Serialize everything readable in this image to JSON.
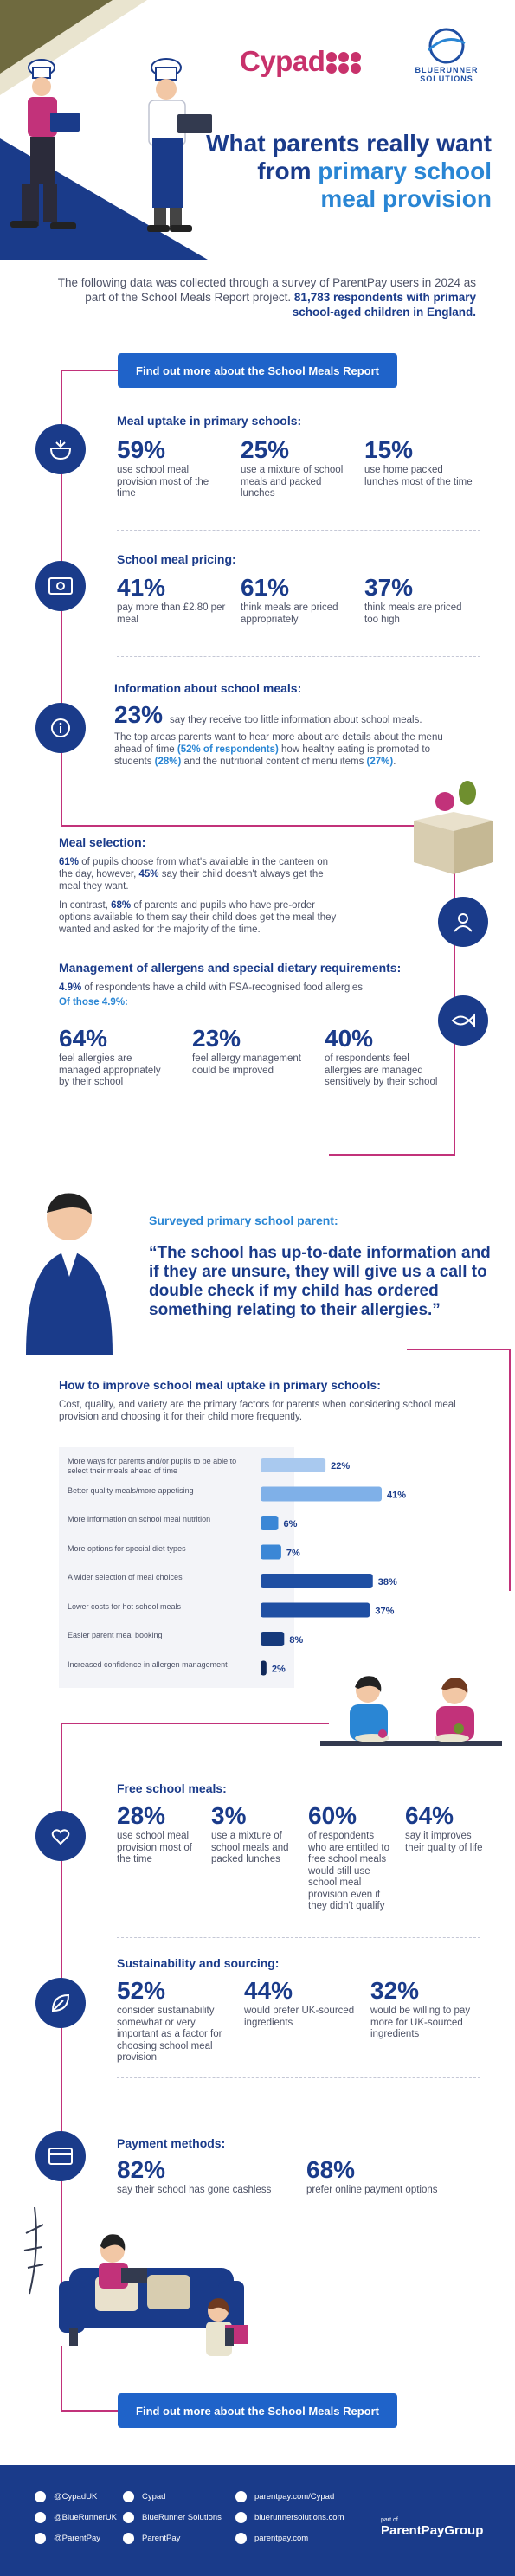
{
  "header": {
    "cypad_logo": "Cypad",
    "bluerunner_logo_line1": "BLUERUNNER",
    "bluerunner_logo_line2": "SOLUTIONS",
    "title_part1": "What parents really want from ",
    "title_highlight": "primary school meal provision",
    "intro_plain": "The following data was collected through a survey of ParentPay users in 2024 as part of the School Meals Report project. ",
    "intro_bold": "81,783 respondents with primary school-aged children in England."
  },
  "cta": {
    "label": "Find out more about the School Meals Report"
  },
  "meal_uptake": {
    "title": "Meal uptake in primary schools:",
    "stats": [
      {
        "value": "59%",
        "label": "use school meal provision most of the time"
      },
      {
        "value": "25%",
        "label": "use a mixture of school meals and packed lunches"
      },
      {
        "value": "15%",
        "label": "use home packed lunches most of the time"
      }
    ]
  },
  "pricing": {
    "title": "School meal pricing:",
    "stats": [
      {
        "value": "41%",
        "label": "pay more than £2.80 per meal"
      },
      {
        "value": "61%",
        "label": "think meals are priced appropriately"
      },
      {
        "value": "37%",
        "label": "think meals are priced too high"
      }
    ]
  },
  "information": {
    "title": "Information about school meals:",
    "value": "23%",
    "value_label": "say they receive too little information about school meals.",
    "body_1": "The top areas parents want to hear more about are details about the menu ahead of time ",
    "body_1b": "(52% of respondents)",
    "body_2": " how healthy eating is promoted to students ",
    "body_2b": "(28%)",
    "body_3": " and the nutritional content of menu items ",
    "body_3b": "(27%)",
    "body_4": "."
  },
  "selection": {
    "title": "Meal selection:",
    "p1_bold1": "61%",
    "p1_a": " of pupils choose from what's available in the canteen on the day, however, ",
    "p1_bold2": "45%",
    "p1_b": " say their child doesn't always get the meal they want.",
    "p2_a": "In contrast, ",
    "p2_bold": "68%",
    "p2_b": " of parents and pupils who have pre-order options available to them say their child does get the meal they wanted and asked for the majority of the time."
  },
  "allergens": {
    "title": "Management of allergens and special dietary requirements:",
    "line1_bold": "4.9%",
    "line1": " of respondents have a child with FSA-recognised food allergies",
    "line2": "Of those 4.9%:",
    "stats": [
      {
        "value": "64%",
        "label": "feel allergies are managed appropriately by their school"
      },
      {
        "value": "23%",
        "label": "feel allergy management could be improved"
      },
      {
        "value": "40%",
        "label": "of respondents feel allergies are managed sensitively by their school"
      }
    ]
  },
  "quote": {
    "label": "Surveyed primary school parent:",
    "text": "“The school has up-to-date information and if they are unsure, they will give us a call to double check if my child has ordered something relating to their allergies.”"
  },
  "improve": {
    "title": "How to improve school meal uptake in primary schools:",
    "intro": "Cost, quality, and variety are the primary factors for parents when considering school meal provision and choosing it for their child more frequently."
  },
  "chart_data": {
    "type": "bar",
    "orientation": "horizontal",
    "categories": [
      "More ways for parents and/or pupils to be able to select their meals ahead of time",
      "Better quality meals/more appetising",
      "More information on school meal nutrition",
      "More options for special diet types",
      "A wider selection of meal choices",
      "Lower costs for hot school meals",
      "Easier parent meal booking",
      "Increased confidence in allergen management"
    ],
    "values": [
      22,
      41,
      6,
      7,
      38,
      37,
      8,
      2
    ],
    "value_labels": [
      "22%",
      "41%",
      "6%",
      "7%",
      "38%",
      "37%",
      "8%",
      "2%"
    ],
    "colors": [
      "#a9c9ef",
      "#7fb0e8",
      "#3b87d6",
      "#3b87d6",
      "#1f4fa3",
      "#1f4fa3",
      "#163a7c",
      "#10295a"
    ],
    "xlim": [
      0,
      41
    ],
    "grid": false,
    "legend": "none"
  },
  "free_meals": {
    "title": "Free school meals:",
    "stats": [
      {
        "value": "28%",
        "label": "use school meal provision most of the time"
      },
      {
        "value": "3%",
        "label": "use a mixture of school meals and packed lunches"
      },
      {
        "value": "60%",
        "label": "of respondents who are entitled to free school meals would still use school meal provision even if they didn't qualify"
      },
      {
        "value": "64%",
        "label": "say it improves their quality of life"
      }
    ]
  },
  "sustainability": {
    "title": "Sustainability and sourcing:",
    "stats": [
      {
        "value": "52%",
        "label": "consider sustainability somewhat or very important as a factor for choosing school meal provision"
      },
      {
        "value": "44%",
        "label": "would prefer UK-sourced ingredients"
      },
      {
        "value": "32%",
        "label": "would be willing to pay more for UK-sourced ingredients"
      }
    ]
  },
  "payment": {
    "title": "Payment methods:",
    "stats": [
      {
        "value": "82%",
        "label": "say their school has gone cashless"
      },
      {
        "value": "68%",
        "label": "prefer online payment options"
      }
    ]
  },
  "footer": {
    "col1": [
      "@CypadUK",
      "@BlueRunnerUK",
      "@ParentPay"
    ],
    "col2": [
      "Cypad",
      "BlueRunner Solutions",
      "ParentPay"
    ],
    "col3": [
      "parentpay.com/Cypad",
      "bluerunnersolutions.com",
      "parentpay.com"
    ],
    "brand_small": "part of",
    "brand_name": "ParentPayGroup"
  },
  "colors": {
    "navy": "#1a3b8a",
    "blue": "#2a86d4",
    "button": "#1f63c9",
    "magenta": "#c2327a",
    "olive": "#6f6a3f"
  }
}
